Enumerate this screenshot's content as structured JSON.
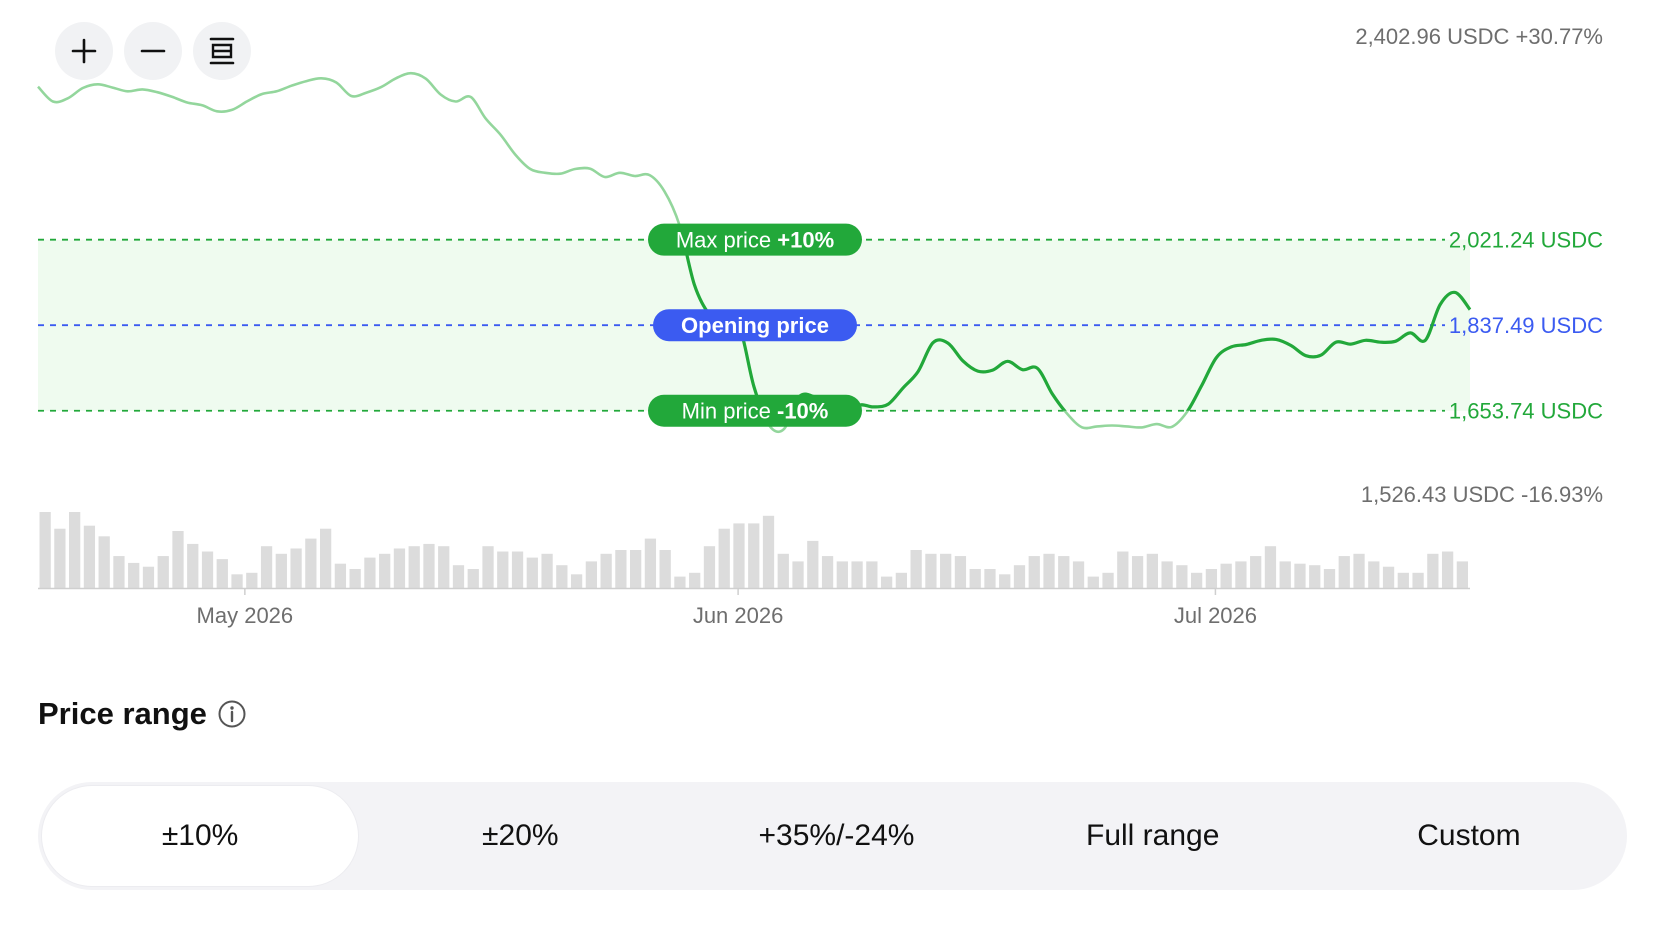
{
  "toolbar": {
    "zoom_in_icon": "plus-icon",
    "zoom_out_icon": "minus-icon",
    "reset_icon": "fit-range-icon"
  },
  "chart_data": {
    "type": "line",
    "x_ticks": [
      "May 2026",
      "Jun 2026",
      "Jul 2026"
    ],
    "x_tick_dates": [
      "2026-05-01",
      "2026-06-01",
      "2026-07-01"
    ],
    "x_range": [
      "2026-04-18",
      "2026-07-17"
    ],
    "ylim": [
      1526.43,
      2402.96
    ],
    "series": [
      {
        "values": [
          2350,
          2318,
          2325,
          2347,
          2355,
          2348,
          2340,
          2344,
          2338,
          2328,
          2316,
          2310,
          2297,
          2300,
          2318,
          2334,
          2340,
          2352,
          2362,
          2368,
          2359,
          2330,
          2337,
          2349,
          2368,
          2379,
          2367,
          2333,
          2318,
          2328,
          2282,
          2247,
          2204,
          2173,
          2165,
          2163,
          2173,
          2174,
          2156,
          2165,
          2158,
          2160,
          2125,
          2053,
          1925,
          1860,
          1831,
          1836,
          1705,
          1623,
          1614,
          1683,
          1684,
          1659,
          1631,
          1665,
          1662,
          1668,
          1703,
          1738,
          1800,
          1799,
          1761,
          1739,
          1741,
          1760,
          1742,
          1745,
          1690,
          1647,
          1618,
          1620,
          1622,
          1620,
          1618,
          1625,
          1619,
          1650,
          1707,
          1768,
          1791,
          1796,
          1805,
          1807,
          1794,
          1772,
          1773,
          1801,
          1797,
          1805,
          1801,
          1803,
          1821,
          1805,
          1882,
          1908,
          1871
        ]
      }
    ],
    "volume": [
      1.0,
      0.78,
      1.0,
      0.82,
      0.68,
      0.42,
      0.33,
      0.28,
      0.42,
      0.75,
      0.58,
      0.48,
      0.38,
      0.18,
      0.2,
      0.55,
      0.45,
      0.52,
      0.65,
      0.78,
      0.32,
      0.25,
      0.4,
      0.45,
      0.52,
      0.55,
      0.58,
      0.55,
      0.3,
      0.25,
      0.55,
      0.48,
      0.48,
      0.4,
      0.45,
      0.3,
      0.18,
      0.35,
      0.45,
      0.5,
      0.5,
      0.65,
      0.5,
      0.15,
      0.2,
      0.55,
      0.78,
      0.85,
      0.85,
      0.95,
      0.45,
      0.35,
      0.62,
      0.42,
      0.35,
      0.35,
      0.35,
      0.15,
      0.2,
      0.5,
      0.45,
      0.45,
      0.42,
      0.25,
      0.25,
      0.18,
      0.3,
      0.42,
      0.45,
      0.42,
      0.35,
      0.15,
      0.2,
      0.48,
      0.42,
      0.45,
      0.35,
      0.3,
      0.2,
      0.25,
      0.32,
      0.35,
      0.42,
      0.55,
      0.35,
      0.32,
      0.3,
      0.25,
      0.42,
      0.45,
      0.35,
      0.28,
      0.2,
      0.2,
      0.45,
      0.48,
      0.35
    ],
    "max_line": {
      "label": "Max price ",
      "pct": "+10%",
      "value": 2021.24,
      "value_text": "2,021.24 USDC",
      "color": "#22a83a"
    },
    "open_line": {
      "label": "Opening price",
      "value": 1837.49,
      "value_text": "1,837.49 USDC",
      "color": "#3b5bf1"
    },
    "min_line": {
      "label": "Min price ",
      "pct": "-10%",
      "value": 1653.74,
      "value_text": "1,653.74 USDC",
      "color": "#22a83a"
    },
    "top_label": "2,402.96 USDC +30.77%",
    "bottom_label": "1,526.43 USDC -16.93%",
    "colors": {
      "in_range_line": "#22a83a",
      "out_range_line": "#93d69c",
      "range_band": "#effbef",
      "volume_bar": "#dcdcdc",
      "axis": "#cfcfcf",
      "tick_text": "#6e6e6e"
    },
    "grid": false
  },
  "price_range": {
    "title": "Price range",
    "info_icon": "info-icon",
    "options": [
      {
        "label": "±10%",
        "active": true
      },
      {
        "label": "±20%",
        "active": false
      },
      {
        "label": "+35%/-24%",
        "active": false
      },
      {
        "label": "Full range",
        "active": false
      },
      {
        "label": "Custom",
        "active": false
      }
    ]
  }
}
